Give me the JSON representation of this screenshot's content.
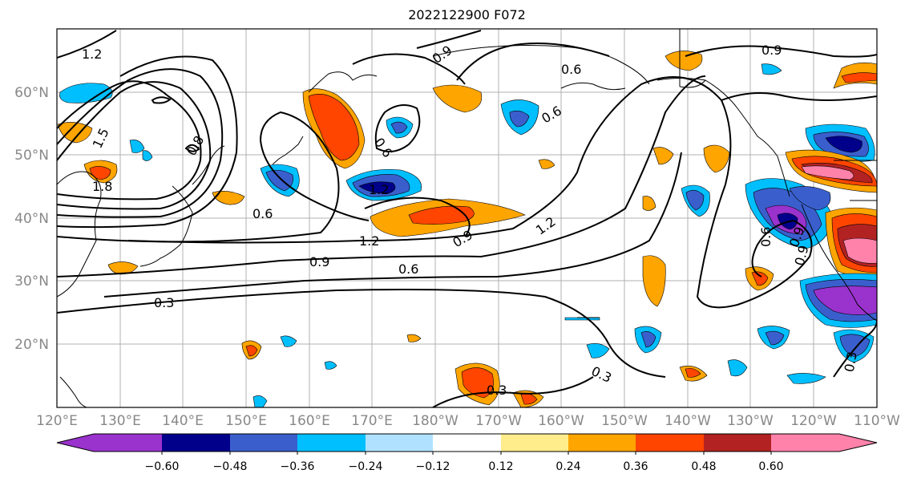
{
  "title": "2022122900 F072",
  "lat_labels": [
    "60°N",
    "50°N",
    "40°N",
    "30°N",
    "20°N"
  ],
  "lon_labels": [
    "120°E",
    "130°E",
    "140°E",
    "150°E",
    "160°E",
    "170°E",
    "180°W",
    "170°W",
    "160°W",
    "150°W",
    "140°W",
    "130°W",
    "120°W",
    "110°W"
  ],
  "colorbar": {
    "labels": [
      "−0.60",
      "−0.48",
      "−0.36",
      "−0.24",
      "−0.12",
      "0.12",
      "0.24",
      "0.36",
      "0.48",
      "0.60"
    ],
    "colors": [
      "#9a32cd",
      "#00008b",
      "#3a5fcd",
      "#00bfff",
      "#b0e2ff",
      "#ffffff",
      "#ffec8b",
      "#ffa500",
      "#ff4500",
      "#b22222",
      "#ff82ab"
    ]
  },
  "contour_labels": [
    "1.2",
    "1.5",
    "1.8",
    "0.9",
    "0.6",
    "0.6",
    "0.9",
    "0.6",
    "1.2",
    "1.2",
    "0.9",
    "0.6",
    "0.3",
    "1.2",
    "0.9",
    "0.6",
    "0.9",
    "0.3",
    "0.3",
    "0.3",
    "0.6",
    "0.9",
    "0.8"
  ]
}
